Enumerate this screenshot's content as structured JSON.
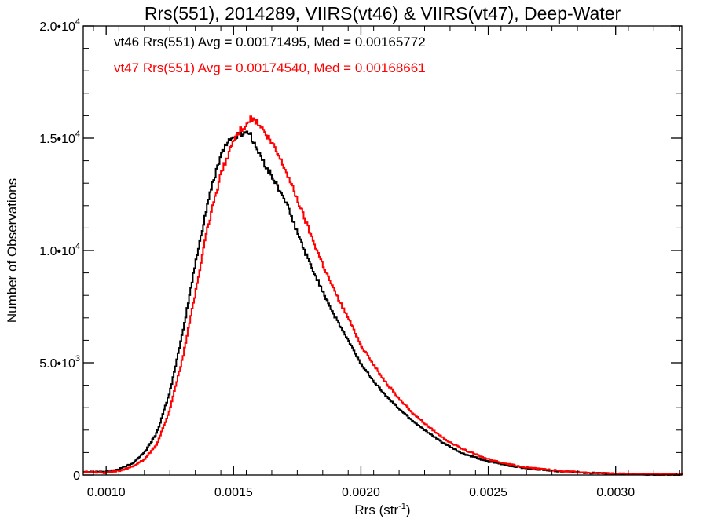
{
  "chart_data": {
    "type": "line",
    "title": "Rrs(551), 2014289, VIIRS(vt46) & VIIRS(vt47), Deep-Water",
    "xlabel": "Rrs (str",
    "xlabel_sup": "-1",
    "xlabel_end": ")",
    "ylabel": "Number of Observations",
    "xlim": [
      0.00091,
      0.00326
    ],
    "ylim": [
      0,
      20000
    ],
    "x_ticks": [
      0.001,
      0.0015,
      0.002,
      0.0025,
      0.003
    ],
    "x_tick_labels": [
      "0.0010",
      "0.0015",
      "0.0020",
      "0.0025",
      "0.0030"
    ],
    "y_ticks": [
      0,
      5000,
      10000,
      15000,
      20000
    ],
    "y_tick_labels": [
      {
        "base": "0",
        "exp": ""
      },
      {
        "base": "5.0•10",
        "exp": "3"
      },
      {
        "base": "1.0•10",
        "exp": "4"
      },
      {
        "base": "1.5•10",
        "exp": "4"
      },
      {
        "base": "2.0•10",
        "exp": "4"
      }
    ],
    "grid": false,
    "legend_placement": "top-left",
    "annotations": [
      {
        "text": "vt46 Rrs(551) Avg = 0.00171495, Med = 0.00165772",
        "color": "#000000"
      },
      {
        "text": "vt47 Rrs(551) Avg = 0.00174540, Med = 0.00168661",
        "color": "#ff0000"
      }
    ],
    "series": [
      {
        "key": "vt46",
        "color": "#000000",
        "x": [
          0.00091,
          0.001,
          0.00105,
          0.0011,
          0.00115,
          0.0012,
          0.00125,
          0.0013,
          0.00135,
          0.0014,
          0.00145,
          0.00148,
          0.0015,
          0.00153,
          0.00156,
          0.00158,
          0.0016,
          0.00163,
          0.00166,
          0.0017,
          0.00175,
          0.0018,
          0.00185,
          0.0019,
          0.00195,
          0.002,
          0.00205,
          0.0021,
          0.00215,
          0.0022,
          0.00225,
          0.0023,
          0.00235,
          0.0024,
          0.0025,
          0.0026,
          0.0027,
          0.0028,
          0.0029,
          0.003,
          0.0031,
          0.00326
        ],
        "y": [
          150,
          150,
          250,
          500,
          1000,
          1900,
          3700,
          6300,
          9400,
          12200,
          14300,
          14900,
          15000,
          15200,
          15300,
          14800,
          14300,
          13700,
          13100,
          12300,
          10800,
          9400,
          8200,
          7000,
          6000,
          4950,
          4200,
          3500,
          2950,
          2450,
          2000,
          1600,
          1250,
          950,
          600,
          380,
          240,
          150,
          90,
          50,
          30,
          10
        ]
      },
      {
        "key": "vt47",
        "color": "#ff0000",
        "x": [
          0.00091,
          0.001,
          0.00105,
          0.0011,
          0.00115,
          0.0012,
          0.00125,
          0.0013,
          0.00135,
          0.0014,
          0.00145,
          0.0015,
          0.00153,
          0.00156,
          0.00158,
          0.0016,
          0.00163,
          0.00166,
          0.0017,
          0.00175,
          0.0018,
          0.00185,
          0.0019,
          0.00195,
          0.002,
          0.00205,
          0.0021,
          0.00215,
          0.0022,
          0.00225,
          0.0023,
          0.00235,
          0.0024,
          0.0025,
          0.0026,
          0.0027,
          0.0028,
          0.0029,
          0.003,
          0.0031,
          0.00326
        ],
        "y": [
          150,
          100,
          180,
          350,
          700,
          1400,
          2900,
          5200,
          8100,
          11100,
          13400,
          14900,
          15400,
          15800,
          15850,
          15600,
          15100,
          14600,
          13700,
          12300,
          10800,
          9400,
          8100,
          7000,
          5800,
          4900,
          4100,
          3400,
          2800,
          2300,
          1850,
          1450,
          1150,
          700,
          430,
          270,
          170,
          100,
          60,
          35,
          10
        ]
      }
    ]
  }
}
